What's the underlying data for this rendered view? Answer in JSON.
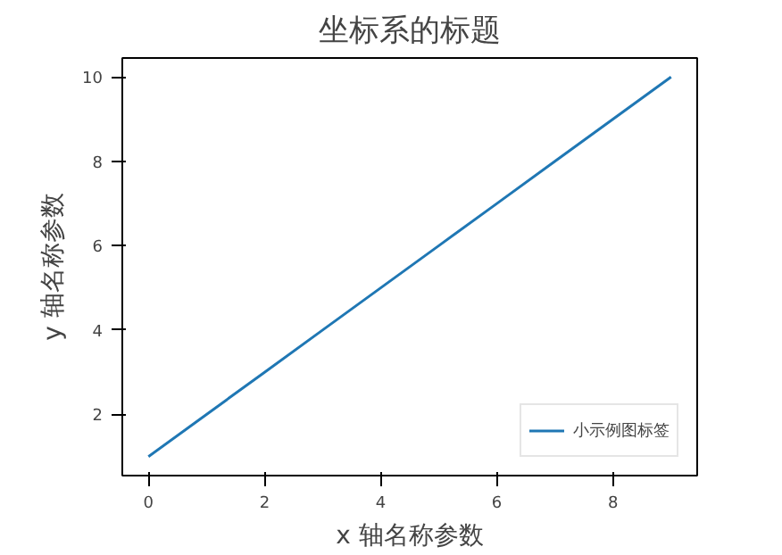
{
  "chart_data": {
    "type": "line",
    "title": "坐标系的标题",
    "xlabel": "x 轴名称参数",
    "ylabel": "y 轴名称参数",
    "x": [
      0,
      1,
      2,
      3,
      4,
      5,
      6,
      7,
      8,
      9
    ],
    "series": [
      {
        "name": "小示例图标签",
        "color": "#1f77b4",
        "values": [
          1,
          2,
          3,
          4,
          5,
          6,
          7,
          8,
          9,
          10
        ]
      }
    ],
    "xlim": [
      -0.45,
      9.45
    ],
    "ylim": [
      0.55,
      10.45
    ],
    "xticks": [
      0,
      2,
      4,
      6,
      8
    ],
    "yticks": [
      2,
      4,
      6,
      8,
      10
    ],
    "grid": false,
    "legend": "bottom right"
  }
}
